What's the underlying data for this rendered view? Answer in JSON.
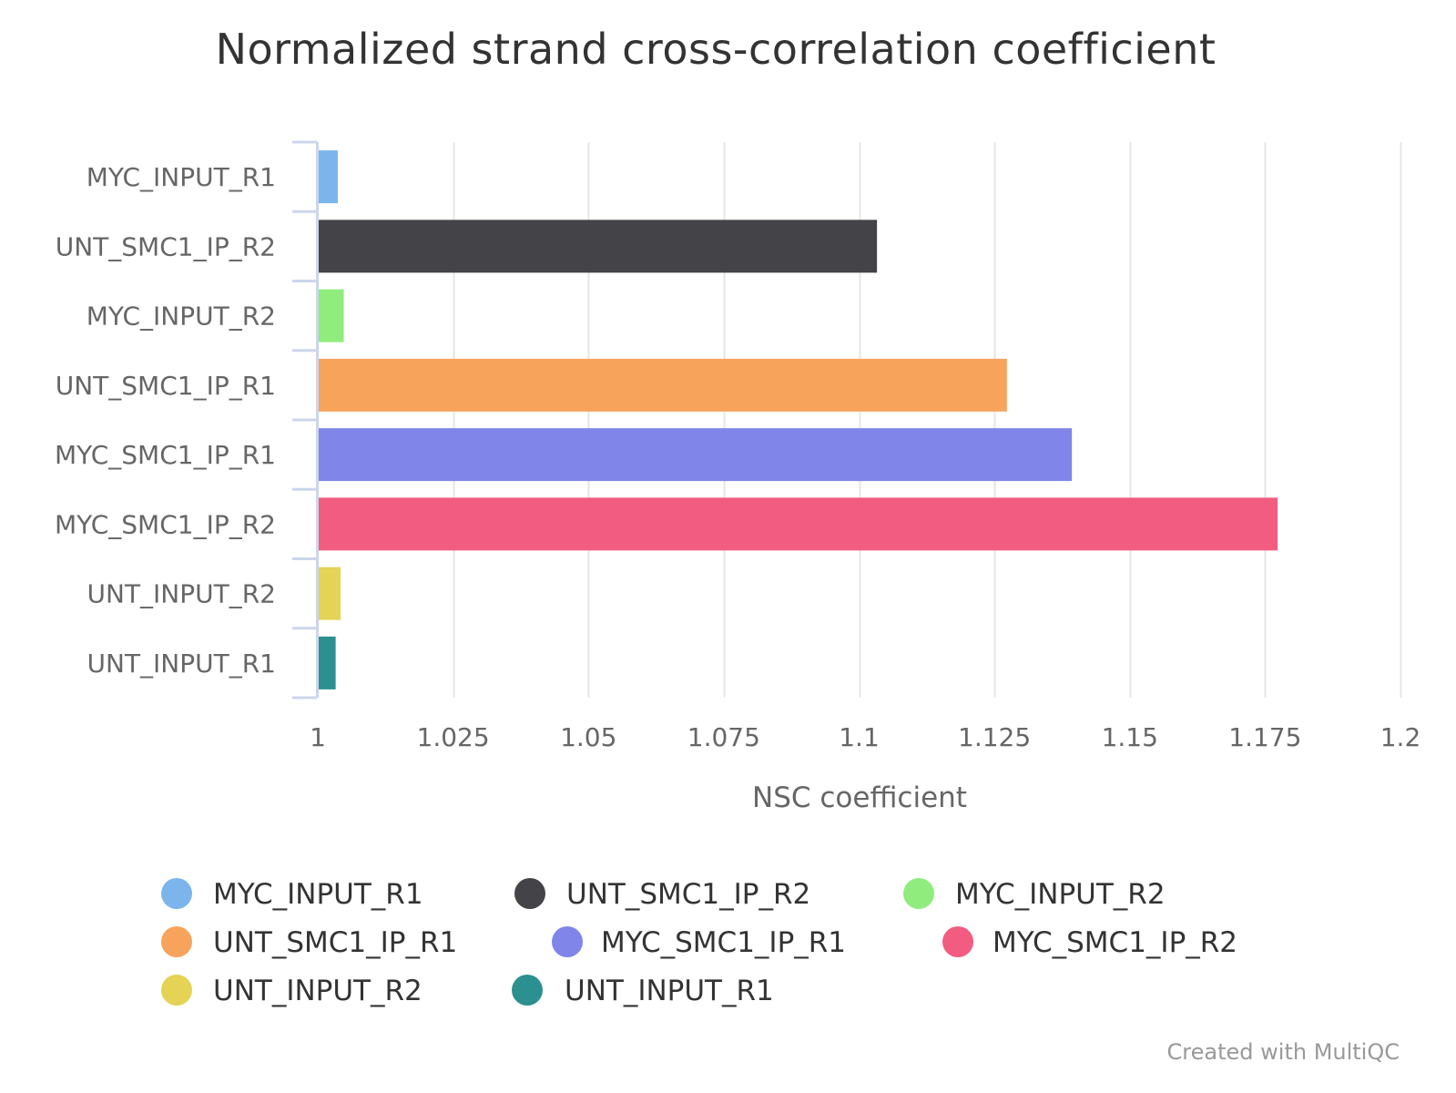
{
  "chart_data": {
    "type": "bar",
    "orientation": "horizontal",
    "title": "Normalized strand cross-correlation coefficient",
    "xlabel": "NSC coefficient",
    "ylabel": "",
    "xlim": [
      1,
      1.2
    ],
    "ticks": [
      {
        "value": 1,
        "label": "1"
      },
      {
        "value": 1.025,
        "label": "1.025"
      },
      {
        "value": 1.05,
        "label": "1.05"
      },
      {
        "value": 1.075,
        "label": "1.075"
      },
      {
        "value": 1.1,
        "label": "1.1"
      },
      {
        "value": 1.125,
        "label": "1.125"
      },
      {
        "value": 1.15,
        "label": "1.15"
      },
      {
        "value": 1.175,
        "label": "1.175"
      },
      {
        "value": 1.2,
        "label": "1.2"
      }
    ],
    "grid": true,
    "legend_position": "bottom",
    "categories": [
      "MYC_INPUT_R1",
      "UNT_SMC1_IP_R2",
      "MYC_INPUT_R2",
      "UNT_SMC1_IP_R1",
      "MYC_SMC1_IP_R1",
      "MYC_SMC1_IP_R2",
      "UNT_INPUT_R2",
      "UNT_INPUT_R1"
    ],
    "series": [
      {
        "name": "MYC_INPUT_R1",
        "value": 1.0037,
        "color": "#7cb5ec"
      },
      {
        "name": "UNT_SMC1_IP_R2",
        "value": 1.1033,
        "color": "#434348"
      },
      {
        "name": "MYC_INPUT_R2",
        "value": 1.0048,
        "color": "#90ed7d"
      },
      {
        "name": "UNT_SMC1_IP_R1",
        "value": 1.1273,
        "color": "#f7a35c"
      },
      {
        "name": "MYC_SMC1_IP_R1",
        "value": 1.1393,
        "color": "#8085e9"
      },
      {
        "name": "MYC_SMC1_IP_R2",
        "value": 1.1773,
        "color": "#f15c80"
      },
      {
        "name": "UNT_INPUT_R2",
        "value": 1.0042,
        "color": "#e4d354"
      },
      {
        "name": "UNT_INPUT_R1",
        "value": 1.0033,
        "color": "#2b908f"
      }
    ]
  },
  "credit": "Created with MultiQC",
  "colors": {
    "grid": "#e6e6e6",
    "axis": "#ccd6eb",
    "text_dark": "#333333",
    "text_muted": "#666666"
  }
}
